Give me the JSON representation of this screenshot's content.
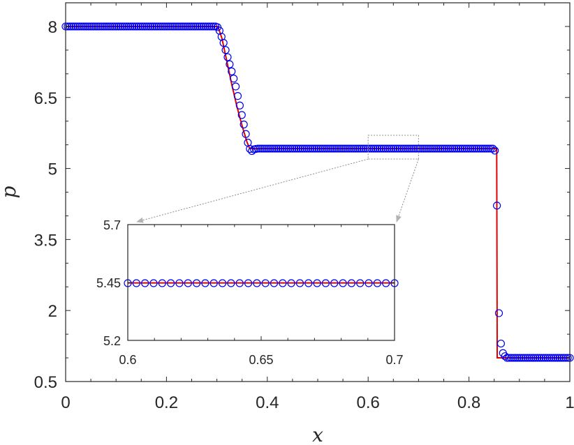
{
  "chart_data": {
    "type": "line",
    "xlabel": "x",
    "ylabel": "p",
    "xlim": [
      0,
      1
    ],
    "ylim": [
      0.5,
      8.5
    ],
    "xticks": [
      0,
      0.2,
      0.4,
      0.6,
      0.8,
      1
    ],
    "xtick_labels": [
      "0",
      "0.2",
      "0.4",
      "0.6",
      "0.8",
      "1"
    ],
    "yticks": [
      0.5,
      2,
      3.5,
      5,
      6.5,
      8
    ],
    "ytick_labels": [
      "0.5",
      "2",
      "3.5",
      "5",
      "6.5",
      "8"
    ],
    "grid": false,
    "series": [
      {
        "style": "solid line",
        "color": "#e00000",
        "points": [
          [
            0,
            8
          ],
          [
            0.302,
            8
          ],
          [
            0.31,
            7.75
          ],
          [
            0.32,
            7.25
          ],
          [
            0.33,
            6.75
          ],
          [
            0.34,
            6.3
          ],
          [
            0.35,
            5.9
          ],
          [
            0.36,
            5.55
          ],
          [
            0.365,
            5.42
          ],
          [
            0.855,
            5.42
          ],
          [
            0.856,
            1.0
          ],
          [
            1,
            1.0
          ]
        ]
      },
      {
        "style": "circle markers",
        "color": "#0000ee",
        "points": [
          [
            0,
            8
          ],
          [
            0.3,
            8
          ],
          [
            0.304,
            7.95
          ],
          [
            0.308,
            7.82
          ],
          [
            0.312,
            7.7
          ],
          [
            0.316,
            7.55
          ],
          [
            0.32,
            7.4
          ],
          [
            0.324,
            7.25
          ],
          [
            0.328,
            7.1
          ],
          [
            0.332,
            6.95
          ],
          [
            0.336,
            6.8
          ],
          [
            0.34,
            6.6
          ],
          [
            0.344,
            6.4
          ],
          [
            0.348,
            6.2
          ],
          [
            0.352,
            6.0
          ],
          [
            0.356,
            5.8
          ],
          [
            0.36,
            5.6
          ],
          [
            0.364,
            5.45
          ],
          [
            0.368,
            5.35
          ],
          [
            0.372,
            5.4
          ],
          [
            0.38,
            5.42
          ],
          [
            0.85,
            5.42
          ],
          [
            0.854,
            5.3
          ],
          [
            0.858,
            2.25
          ],
          [
            0.862,
            1.4
          ],
          [
            0.866,
            1.13
          ],
          [
            0.87,
            1.05
          ],
          [
            0.875,
            1.0
          ],
          [
            1,
            1.0
          ]
        ]
      }
    ],
    "inset": {
      "xlim": [
        0.6,
        0.7
      ],
      "ylim": [
        5.2,
        5.7
      ],
      "xticks": [
        0.6,
        0.65,
        0.7
      ],
      "xtick_labels": [
        "0.6",
        "0.65",
        "0.7"
      ],
      "yticks": [
        5.2,
        5.45,
        5.7
      ],
      "ytick_labels": [
        "5.2",
        "5.45",
        "5.7"
      ],
      "line_value": 5.448,
      "marker_value": 5.447,
      "zoom_region": {
        "x": [
          0.6,
          0.7
        ],
        "y": [
          5.2,
          5.7
        ]
      }
    },
    "colors": {
      "line": "#e00000",
      "markers": "#0000ee",
      "axes": "#262626",
      "zoom_box": "#8c8c8c"
    }
  }
}
